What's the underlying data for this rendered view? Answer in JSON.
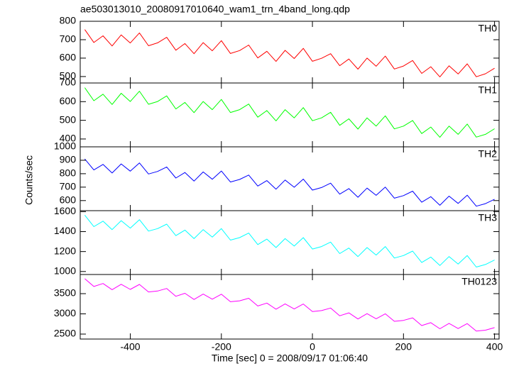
{
  "chart_data": {
    "type": "line",
    "title": "ae503013010_20080917010640_wam1_trn_4band_long.qdp",
    "xlabel": "Time [sec] 0 = 2008/09/17 01:06:40",
    "ylabel": "Counts/sec",
    "xlim": [
      -510,
      410
    ],
    "xticks": [
      -400,
      -200,
      0,
      200,
      400
    ],
    "x": [
      -500,
      -480,
      -460,
      -440,
      -420,
      -400,
      -380,
      -360,
      -340,
      -320,
      -300,
      -280,
      -260,
      -240,
      -220,
      -200,
      -180,
      -160,
      -140,
      -120,
      -100,
      -80,
      -60,
      -40,
      -20,
      0,
      20,
      40,
      60,
      80,
      100,
      120,
      140,
      160,
      180,
      200,
      220,
      240,
      260,
      280,
      300,
      320,
      340,
      360,
      380,
      400
    ],
    "series": [
      {
        "name": "TH0",
        "color": "#ff0000",
        "ylim": [
          465,
          800
        ],
        "yticks": [
          500,
          600,
          700,
          800
        ],
        "values": [
          755,
          685,
          721,
          666,
          726,
          682,
          737,
          667,
          683,
          713,
          643,
          679,
          624,
          684,
          640,
          695,
          625,
          641,
          671,
          601,
          637,
          582,
          642,
          598,
          653,
          583,
          599,
          624,
          559,
          595,
          540,
          600,
          556,
          611,
          541,
          557,
          587,
          517,
          553,
          498,
          558,
          514,
          569,
          499,
          515,
          545
        ]
      },
      {
        "name": "TH1",
        "color": "#00ff00",
        "ylim": [
          358,
          700
        ],
        "yticks": [
          400,
          500,
          600,
          700
        ],
        "values": [
          675,
          605,
          640,
          585,
          645,
          601,
          656,
          586,
          601,
          631,
          561,
          596,
          541,
          601,
          557,
          612,
          542,
          557,
          587,
          517,
          552,
          497,
          557,
          513,
          568,
          498,
          513,
          543,
          473,
          508,
          453,
          513,
          469,
          524,
          454,
          469,
          499,
          429,
          464,
          409,
          469,
          425,
          480,
          410,
          425,
          455
        ]
      },
      {
        "name": "TH2",
        "color": "#0000ff",
        "ylim": [
          525,
          1000
        ],
        "yticks": [
          600,
          700,
          800,
          900,
          1000
        ],
        "values": [
          910,
          828,
          869,
          805,
          873,
          819,
          880,
          798,
          817,
          850,
          768,
          809,
          745,
          813,
          759,
          820,
          738,
          757,
          790,
          708,
          749,
          685,
          753,
          699,
          760,
          678,
          697,
          730,
          648,
          689,
          625,
          693,
          639,
          700,
          618,
          637,
          670,
          588,
          629,
          565,
          633,
          579,
          640,
          558,
          577,
          610
        ]
      },
      {
        "name": "TH3",
        "color": "#00ffff",
        "ylim": [
          970,
          1610
        ],
        "yticks": [
          1000,
          1200,
          1400,
          1600
        ],
        "values": [
          1565,
          1450,
          1505,
          1420,
          1510,
          1435,
          1520,
          1405,
          1430,
          1475,
          1360,
          1415,
          1330,
          1420,
          1345,
          1430,
          1315,
          1340,
          1385,
          1270,
          1325,
          1240,
          1330,
          1255,
          1340,
          1225,
          1250,
          1295,
          1180,
          1235,
          1150,
          1240,
          1165,
          1250,
          1135,
          1160,
          1205,
          1090,
          1145,
          1060,
          1150,
          1075,
          1160,
          1045,
          1070,
          1115
        ]
      },
      {
        "name": "TH0123",
        "color": "#ff00ff",
        "ylim": [
          2377,
          3974
        ],
        "yticks": [
          2500,
          3000,
          3500
        ],
        "values": [
          3870,
          3678,
          3751,
          3599,
          3732,
          3606,
          3729,
          3542,
          3565,
          3628,
          3436,
          3509,
          3357,
          3490,
          3363,
          3487,
          3300,
          3323,
          3386,
          3194,
          3267,
          3115,
          3248,
          3121,
          3244,
          3058,
          3081,
          3144,
          2952,
          3025,
          2873,
          3006,
          2879,
          3002,
          2815,
          2839,
          2902,
          2710,
          2783,
          2631,
          2764,
          2637,
          2760,
          2573,
          2596,
          2660
        ]
      }
    ]
  }
}
